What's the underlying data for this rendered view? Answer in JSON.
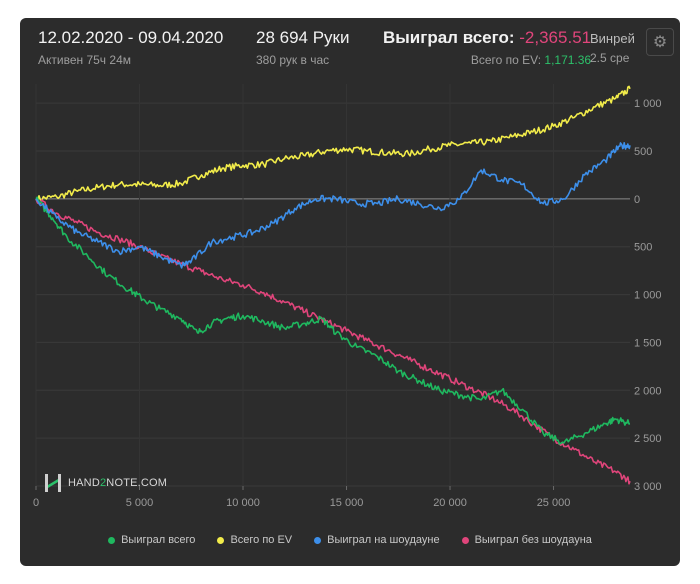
{
  "header": {
    "date_range": "12.02.2020 - 09.04.2020",
    "active_label": "Активен 75ч 24м",
    "hands_label": "28 694 Руки",
    "hands_rate": "380 рук в час",
    "won_title": "Выиграл всего:",
    "won_value": "-2,365.51",
    "ev_title": "Всего по EV:",
    "ev_value": "1,171.36",
    "winrate_title": "Винрей",
    "winrate_sub": "2.5 сре"
  },
  "logo": {
    "prefix": "HAND",
    "two": "2",
    "suffix": "NOTE.COM"
  },
  "colors": {
    "won": "#1fb85f",
    "ev": "#f2ec4a",
    "showdown": "#3d8fea",
    "non_showdown": "#e0457b"
  },
  "chart_data": {
    "type": "line",
    "xlim": [
      0,
      28694
    ],
    "ylim": [
      -3000,
      1200
    ],
    "y_inverted_labels": true,
    "x_ticks": [
      {
        "value": 0,
        "label": "0"
      },
      {
        "value": 5000,
        "label": "5 000"
      },
      {
        "value": 10000,
        "label": "10 000"
      },
      {
        "value": 15000,
        "label": "15 000"
      },
      {
        "value": 20000,
        "label": "20 000"
      },
      {
        "value": 25000,
        "label": "25 000"
      }
    ],
    "y_ticks": [
      {
        "value": 1000,
        "label": "1 000"
      },
      {
        "value": 500,
        "label": "500"
      },
      {
        "value": 0,
        "label": "0"
      },
      {
        "value": -500,
        "label": "500"
      },
      {
        "value": -1000,
        "label": "1 000"
      },
      {
        "value": -1500,
        "label": "1 500"
      },
      {
        "value": -2000,
        "label": "2 000"
      },
      {
        "value": -2500,
        "label": "2 500"
      },
      {
        "value": -3000,
        "label": "3 000"
      }
    ],
    "legend_position": "bottom",
    "series": [
      {
        "name": "Выиграл всего",
        "color_key": "won",
        "x": [
          0,
          800,
          1500,
          2500,
          3500,
          4500,
          5200,
          6000,
          7000,
          7800,
          8500,
          9200,
          10000,
          11000,
          12000,
          13000,
          13800,
          14500,
          15500,
          16500,
          17500,
          18500,
          19500,
          20500,
          21500,
          22500,
          23500,
          24500,
          25500,
          26500,
          27500,
          28000,
          28694
        ],
        "y": [
          0,
          -200,
          -400,
          -600,
          -800,
          -950,
          -1050,
          -1150,
          -1250,
          -1400,
          -1300,
          -1250,
          -1220,
          -1280,
          -1350,
          -1300,
          -1250,
          -1400,
          -1550,
          -1650,
          -1800,
          -1900,
          -2000,
          -2050,
          -2100,
          -2000,
          -2200,
          -2450,
          -2550,
          -2450,
          -2350,
          -2300,
          -2350
        ]
      },
      {
        "name": "Всего по EV",
        "color_key": "ev",
        "x": [
          0,
          1000,
          2000,
          3000,
          4000,
          5000,
          6000,
          7000,
          8000,
          9000,
          10000,
          11000,
          12000,
          13000,
          14000,
          15000,
          16000,
          17000,
          18000,
          19000,
          20000,
          21000,
          22000,
          23000,
          24000,
          25000,
          26000,
          27000,
          28000,
          28694
        ],
        "y": [
          0,
          20,
          80,
          120,
          150,
          150,
          140,
          160,
          250,
          320,
          350,
          360,
          420,
          450,
          500,
          520,
          500,
          480,
          470,
          520,
          560,
          580,
          600,
          650,
          700,
          760,
          850,
          960,
          1050,
          1150
        ]
      },
      {
        "name": "Выиграл на шоудауне",
        "color_key": "showdown",
        "x": [
          0,
          1000,
          2000,
          3000,
          4000,
          5000,
          6000,
          7000,
          7500,
          8500,
          9500,
          10500,
          11500,
          12500,
          13500,
          14500,
          15500,
          16500,
          17500,
          18500,
          19500,
          20500,
          21500,
          22500,
          23500,
          24500,
          25500,
          26500,
          27500,
          28200,
          28694
        ],
        "y": [
          0,
          -200,
          -350,
          -450,
          -550,
          -500,
          -600,
          -700,
          -650,
          -450,
          -400,
          -350,
          -250,
          -100,
          0,
          0,
          -50,
          -50,
          0,
          -50,
          -100,
          0,
          300,
          200,
          150,
          -50,
          0,
          250,
          400,
          550,
          560
        ]
      },
      {
        "name": "Выиграл без шоудауна",
        "color_key": "non_showdown",
        "x": [
          0,
          1000,
          2000,
          3000,
          4000,
          5000,
          6000,
          7000,
          8000,
          9000,
          10000,
          11000,
          12000,
          13000,
          14000,
          15000,
          16000,
          17000,
          18000,
          19000,
          20000,
          21000,
          22000,
          23000,
          24000,
          25000,
          26000,
          27000,
          28000,
          28694
        ],
        "y": [
          0,
          -150,
          -250,
          -350,
          -420,
          -500,
          -600,
          -680,
          -760,
          -840,
          -900,
          -980,
          -1080,
          -1180,
          -1280,
          -1380,
          -1480,
          -1580,
          -1680,
          -1780,
          -1880,
          -1980,
          -2080,
          -2200,
          -2350,
          -2500,
          -2620,
          -2750,
          -2850,
          -2950
        ]
      }
    ]
  }
}
